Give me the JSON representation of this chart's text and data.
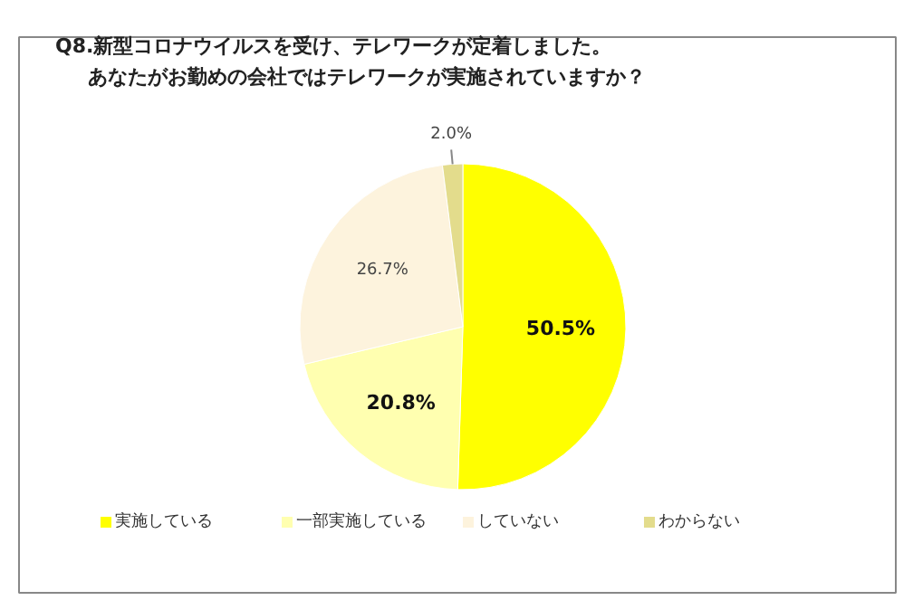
{
  "chart_data": {
    "type": "pie",
    "title": "Q8.新型コロナウイルスを受け、テレワークが定着しました。",
    "subtitle": "あなたがお勤めの会社ではテレワークが実施されていますか？",
    "categories": [
      "実施している",
      "一部実施している",
      "していない",
      "わからない"
    ],
    "values": [
      50.5,
      20.8,
      26.7,
      2.0
    ],
    "colors": [
      "#ffff00",
      "#ffffb0",
      "#fdf3dd",
      "#e3dc8c"
    ],
    "value_labels": [
      "50.5%",
      "20.8%",
      "26.7%",
      "2.0%"
    ],
    "legend": "bottom"
  }
}
